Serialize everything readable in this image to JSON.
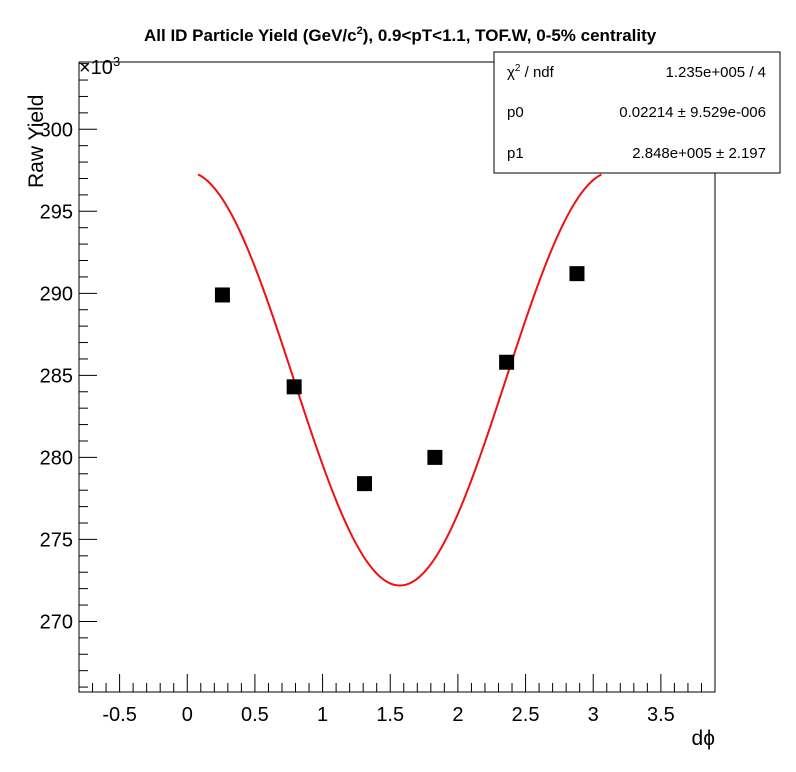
{
  "chart_data": {
    "type": "scatter",
    "title": {
      "prefix": "All ID Particle Yield (GeV/c",
      "superscript": "2",
      "suffix": "), 0.9<pT<1.1, TOF.W, 0-5% centrality"
    },
    "xlabel": "dϕ",
    "ylabel": "Raw Yield",
    "y_multiplier": {
      "base": "×10",
      "exponent": "3"
    },
    "xlim": [
      -0.8,
      3.9
    ],
    "ylim": [
      265.7,
      304.1
    ],
    "x_ticks": [
      -0.5,
      0,
      0.5,
      1,
      1.5,
      2,
      2.5,
      3,
      3.5
    ],
    "x_tick_labels": [
      "-0.5",
      "0",
      "0.5",
      "1",
      "1.5",
      "2",
      "2.5",
      "3",
      "3.5"
    ],
    "y_ticks": [
      270,
      275,
      280,
      285,
      290,
      295,
      300
    ],
    "y_tick_labels": [
      "270",
      "275",
      "280",
      "285",
      "290",
      "295",
      "300"
    ],
    "grid": false,
    "points": {
      "x": [
        0.26,
        0.79,
        1.31,
        1.83,
        2.36,
        2.88
      ],
      "y": [
        289.9,
        284.3,
        278.4,
        280.0,
        285.8,
        291.2
      ]
    },
    "fit": {
      "color": "#ee1111",
      "x_range": [
        0.08,
        3.06
      ],
      "p0": 0.02214,
      "p1": 284.8
    },
    "marker_color": "#000000",
    "stats": {
      "rows": [
        {
          "label": "χ",
          "label_sup": "2",
          "label_suffix": " / ndf",
          "value": "1.235e+005 / 4"
        },
        {
          "label": "p0",
          "label_sup": "",
          "label_suffix": "",
          "value": "0.02214 ± 9.529e-006"
        },
        {
          "label": "p1",
          "label_sup": "",
          "label_suffix": "",
          "value": "2.848e+005 ± 2.197"
        }
      ]
    }
  }
}
